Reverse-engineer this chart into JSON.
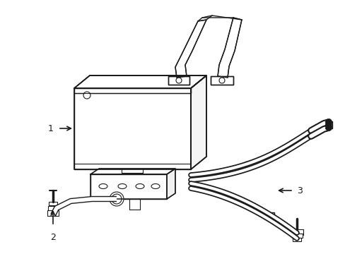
{
  "background_color": "#ffffff",
  "line_color": "#1a1a1a",
  "lw": 1.0,
  "figsize": [
    4.89,
    3.6
  ],
  "dpi": 100,
  "label_1": "1",
  "label_2": "2",
  "label_3": "3"
}
